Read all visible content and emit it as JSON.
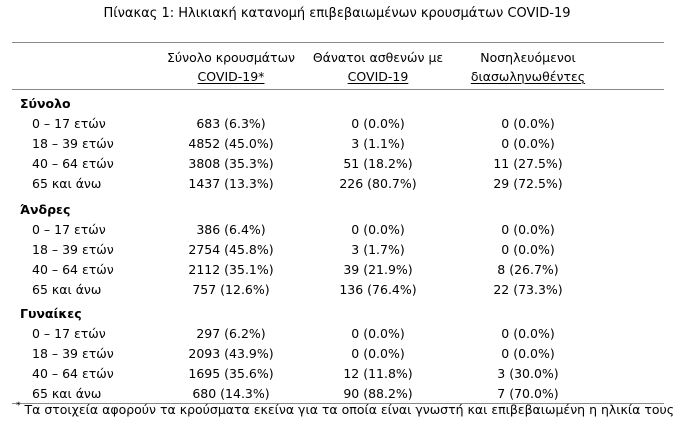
{
  "title": "Πίνακας 1: Ηλικιακή κατανομή επιβεβαιωμένων κρουσμάτων COVID-19",
  "columns": [
    {
      "line1": "Σύνολο κρουσμάτων",
      "line2": "COVID-19*"
    },
    {
      "line1": "Θάνατοι ασθενών με",
      "line2": "COVID-19"
    },
    {
      "line1": "Νοσηλευόμενοι",
      "line2": "διασωληνωθέντες"
    }
  ],
  "groups": [
    {
      "name": "Σύνολο",
      "rows": [
        {
          "age": "0 – 17 ετών",
          "cases": "683 (6.3%)",
          "deaths": "0 (0.0%)",
          "intubated": "0 (0.0%)"
        },
        {
          "age": "18 – 39 ετών",
          "cases": "4852 (45.0%)",
          "deaths": "3 (1.1%)",
          "intubated": "0 (0.0%)"
        },
        {
          "age": "40 – 64 ετών",
          "cases": "3808 (35.3%)",
          "deaths": "51 (18.2%)",
          "intubated": "11 (27.5%)"
        },
        {
          "age": "65 και άνω",
          "cases": "1437 (13.3%)",
          "deaths": "226 (80.7%)",
          "intubated": "29 (72.5%)"
        }
      ]
    },
    {
      "name": "Άνδρες",
      "rows": [
        {
          "age": "0 – 17 ετών",
          "cases": "386 (6.4%)",
          "deaths": "0 (0.0%)",
          "intubated": "0 (0.0%)"
        },
        {
          "age": "18 – 39 ετών",
          "cases": "2754 (45.8%)",
          "deaths": "3 (1.7%)",
          "intubated": "0 (0.0%)"
        },
        {
          "age": "40 – 64 ετών",
          "cases": "2112 (35.1%)",
          "deaths": "39 (21.9%)",
          "intubated": "8 (26.7%)"
        },
        {
          "age": "65 και άνω",
          "cases": "757 (12.6%)",
          "deaths": "136 (76.4%)",
          "intubated": "22 (73.3%)"
        }
      ]
    },
    {
      "name": "Γυναίκες",
      "rows": [
        {
          "age": "0 – 17 ετών",
          "cases": "297 (6.2%)",
          "deaths": "0 (0.0%)",
          "intubated": "0 (0.0%)"
        },
        {
          "age": "18 – 39 ετών",
          "cases": "2093 (43.9%)",
          "deaths": "0 (0.0%)",
          "intubated": "0 (0.0%)"
        },
        {
          "age": "40 – 64 ετών",
          "cases": "1695 (35.6%)",
          "deaths": "12 (11.8%)",
          "intubated": "3 (30.0%)"
        },
        {
          "age": "65 και άνω",
          "cases": "680 (14.3%)",
          "deaths": "90 (88.2%)",
          "intubated": "7 (70.0%)"
        }
      ]
    }
  ],
  "footnote": {
    "marker": "*",
    "text": "Τα στοιχεία αφορούν τα κρούσματα εκείνα για τα οποία είναι γνωστή και επιβεβαιωμένη η ηλικία τους"
  }
}
